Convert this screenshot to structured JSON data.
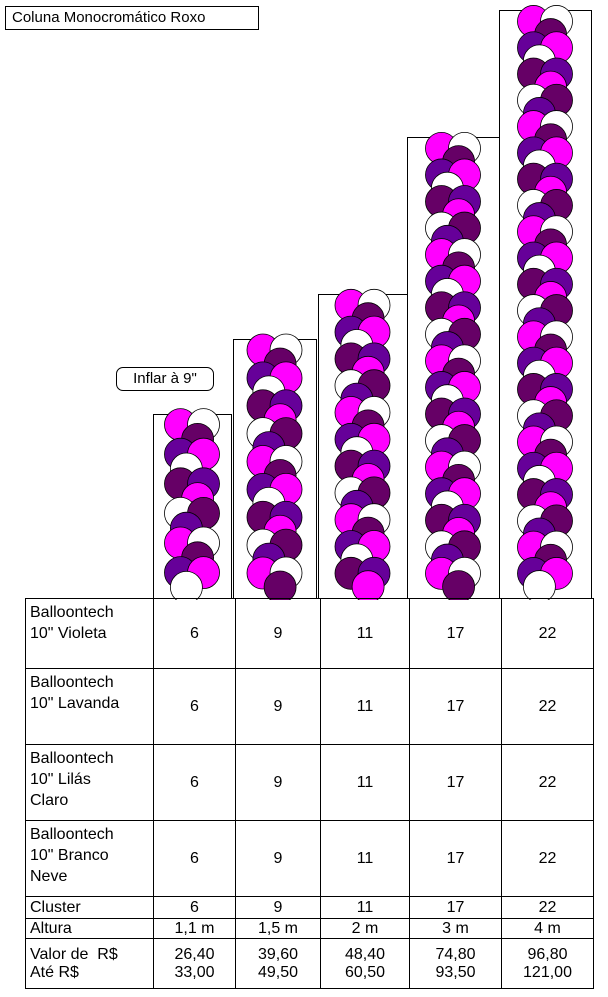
{
  "title": "Coluna Monocromático Roxo",
  "note": "Inflar à 9\"",
  "colors": {
    "magenta": "#ff00ff",
    "violeta": "#660099",
    "lavanda": "#660066",
    "branco": "#ffffff",
    "outline": "#000000"
  },
  "columns": [
    {
      "heightLabel": "1,1 m",
      "clusters": 6
    },
    {
      "heightLabel": "1,5 m",
      "clusters": 9
    },
    {
      "heightLabel": "2 m",
      "clusters": 11
    },
    {
      "heightLabel": "3 m",
      "clusters": 17
    },
    {
      "heightLabel": "4 m",
      "clusters": 22
    }
  ],
  "table": {
    "rows": [
      {
        "label": "Balloontech\n10\" Violeta",
        "values": [
          "6",
          "9",
          "11",
          "17",
          "22"
        ]
      },
      {
        "label": "Balloontech\n10\" Lavanda",
        "values": [
          "6",
          "9",
          "11",
          "17",
          "22"
        ]
      },
      {
        "label": "Balloontech\n10\" Lilás\nClaro",
        "values": [
          "6",
          "9",
          "11",
          "17",
          "22"
        ]
      },
      {
        "label": "Balloontech\n10\" Branco\nNeve",
        "values": [
          "6",
          "9",
          "11",
          "17",
          "22"
        ]
      },
      {
        "label": "Cluster",
        "values": [
          "6",
          "9",
          "11",
          "17",
          "22"
        ]
      },
      {
        "label": "Altura",
        "values": [
          "1,1 m",
          "1,5 m",
          "2 m",
          "3 m",
          "4 m"
        ]
      }
    ],
    "price": {
      "label_from": "Valor de  R$",
      "label_to": "Até R$",
      "from": [
        "26,40",
        "39,60",
        "48,40",
        "74,80",
        "96,80"
      ],
      "to": [
        "33,00",
        "49,50",
        "60,50",
        "93,50",
        "121,00"
      ]
    }
  }
}
